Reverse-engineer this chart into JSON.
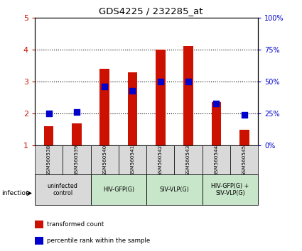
{
  "title": "GDS4225 / 232285_at",
  "samples": [
    "GSM560538",
    "GSM560539",
    "GSM560540",
    "GSM560541",
    "GSM560542",
    "GSM560543",
    "GSM560544",
    "GSM560545"
  ],
  "transformed_count": [
    1.6,
    1.7,
    3.4,
    3.3,
    4.0,
    4.1,
    2.35,
    1.5
  ],
  "percentile_rank": [
    25,
    26,
    46,
    43,
    50,
    50,
    33,
    24
  ],
  "ylim_left": [
    1,
    5
  ],
  "ylim_right": [
    0,
    100
  ],
  "yticks_left": [
    1,
    2,
    3,
    4,
    5
  ],
  "yticks_right": [
    0,
    25,
    50,
    75,
    100
  ],
  "bar_color": "#cc1100",
  "dot_color": "#0000cc",
  "groups": [
    {
      "label": "uninfected\ncontrol",
      "start": 0,
      "end": 2,
      "color": "#d9d9d9"
    },
    {
      "label": "HIV-GFP(G)",
      "start": 2,
      "end": 4,
      "color": "#c8e6c9"
    },
    {
      "label": "SIV-VLP(G)",
      "start": 4,
      "end": 6,
      "color": "#c8e6c9"
    },
    {
      "label": "HIV-GFP(G) +\nSIV-VLP(G)",
      "start": 6,
      "end": 8,
      "color": "#c8e6c9"
    }
  ],
  "legend_items": [
    {
      "label": "transformed count",
      "color": "#cc1100"
    },
    {
      "label": "percentile rank within the sample",
      "color": "#0000cc"
    }
  ],
  "infection_label": "infection",
  "bar_width": 0.35,
  "dot_size": 38
}
